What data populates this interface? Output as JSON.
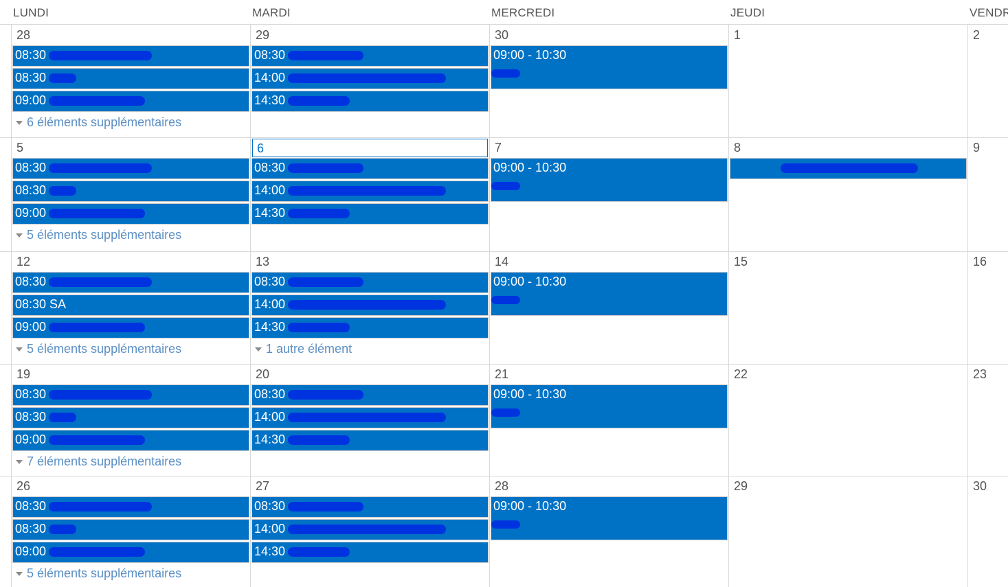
{
  "days_of_week": [
    "LUNDI",
    "MARDI",
    "MERCREDI",
    "JEUDI",
    "VENDR"
  ],
  "accent_color": "#0072c6",
  "weeks": [
    {
      "days": [
        {
          "num": "28",
          "events": [
            {
              "label": "08:30"
            },
            {
              "label": "08:30"
            },
            {
              "label": "09:00"
            }
          ],
          "more": "6 éléments supplémentaires"
        },
        {
          "num": "29",
          "events": [
            {
              "label": "08:30"
            },
            {
              "label": "14:00"
            },
            {
              "label": "14:30"
            }
          ],
          "more": ""
        },
        {
          "num": "30",
          "events": [
            {
              "label": "09:00 - 10:30",
              "tall": true
            }
          ],
          "more": ""
        },
        {
          "num": "1",
          "events": [],
          "more": ""
        },
        {
          "num": "2",
          "events": [],
          "more": ""
        }
      ]
    },
    {
      "days": [
        {
          "num": "5",
          "events": [
            {
              "label": "08:30"
            },
            {
              "label": "08:30"
            },
            {
              "label": "09:00"
            }
          ],
          "more": "5 éléments supplémentaires"
        },
        {
          "num": "6",
          "today": true,
          "events": [
            {
              "label": "08:30"
            },
            {
              "label": "14:00"
            },
            {
              "label": "14:30"
            }
          ],
          "more": ""
        },
        {
          "num": "7",
          "events": [
            {
              "label": "09:00 - 10:30",
              "tall": true
            }
          ],
          "more": ""
        },
        {
          "num": "8",
          "events": [
            {
              "label": "",
              "allday": true
            }
          ],
          "more": ""
        },
        {
          "num": "9",
          "events": [],
          "more": ""
        }
      ]
    },
    {
      "days": [
        {
          "num": "12",
          "events": [
            {
              "label": "08:30"
            },
            {
              "label": "08:30 SA"
            },
            {
              "label": "09:00"
            }
          ],
          "more": "5 éléments supplémentaires"
        },
        {
          "num": "13",
          "events": [
            {
              "label": "08:30"
            },
            {
              "label": "14:00"
            },
            {
              "label": "14:30"
            }
          ],
          "more": "1 autre élément"
        },
        {
          "num": "14",
          "events": [
            {
              "label": "09:00 - 10:30",
              "tall": true
            }
          ],
          "more": ""
        },
        {
          "num": "15",
          "events": [],
          "more": ""
        },
        {
          "num": "16",
          "events": [],
          "more": ""
        }
      ]
    },
    {
      "days": [
        {
          "num": "19",
          "events": [
            {
              "label": "08:30"
            },
            {
              "label": "08:30"
            },
            {
              "label": "09:00"
            }
          ],
          "more": "7 éléments supplémentaires"
        },
        {
          "num": "20",
          "events": [
            {
              "label": "08:30"
            },
            {
              "label": "14:00"
            },
            {
              "label": "14:30"
            }
          ],
          "more": ""
        },
        {
          "num": "21",
          "events": [
            {
              "label": "09:00 - 10:30",
              "tall": true
            }
          ],
          "more": ""
        },
        {
          "num": "22",
          "events": [],
          "more": ""
        },
        {
          "num": "23",
          "events": [],
          "more": ""
        }
      ]
    },
    {
      "days": [
        {
          "num": "26",
          "events": [
            {
              "label": "08:30"
            },
            {
              "label": "08:30"
            },
            {
              "label": "09:00"
            }
          ],
          "more": "5 éléments supplémentaires"
        },
        {
          "num": "27",
          "events": [
            {
              "label": "08:30"
            },
            {
              "label": "14:00"
            },
            {
              "label": "14:30"
            }
          ],
          "more": ""
        },
        {
          "num": "28",
          "events": [
            {
              "label": "09:00 - 10:30",
              "tall": true
            }
          ],
          "more": ""
        },
        {
          "num": "29",
          "events": [],
          "more": ""
        },
        {
          "num": "30",
          "events": [],
          "more": ""
        }
      ]
    }
  ]
}
